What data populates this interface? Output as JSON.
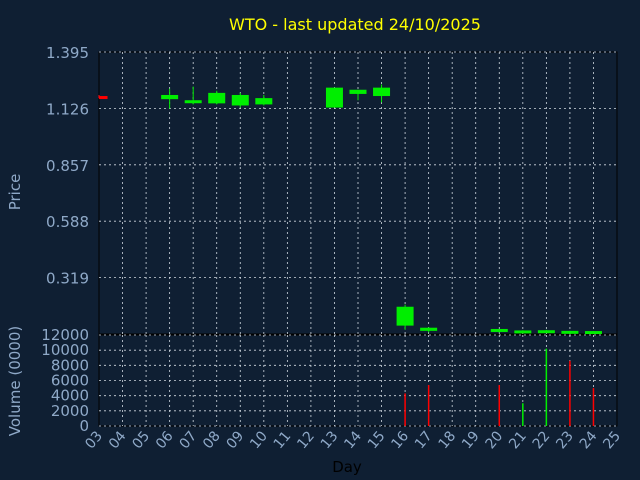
{
  "chart_data": [
    {
      "type": "candlestick",
      "title": "WTO - last updated 24/10/2025",
      "ylabel": "Price",
      "ylim": [
        0.05,
        1.395
      ],
      "yticks": [
        1.395,
        1.126,
        0.857,
        0.588,
        0.319
      ],
      "x": [
        3,
        6,
        7,
        8,
        9,
        10,
        13,
        14,
        15,
        16,
        17,
        20,
        21,
        22,
        23,
        24
      ],
      "open": [
        1.185,
        1.17,
        1.155,
        1.15,
        1.14,
        1.145,
        1.13,
        1.195,
        1.185,
        0.09,
        0.065,
        0.064,
        0.062,
        0.063,
        0.061,
        0.061
      ],
      "high": [
        1.19,
        1.22,
        1.23,
        1.21,
        1.2,
        1.19,
        1.225,
        1.215,
        1.24,
        0.19,
        0.082,
        0.074,
        0.068,
        0.07,
        0.065,
        0.064
      ],
      "low": [
        1.175,
        1.125,
        1.145,
        1.145,
        1.13,
        1.14,
        1.13,
        1.165,
        1.155,
        0.07,
        0.058,
        0.057,
        0.059,
        0.059,
        0.056,
        0.058
      ],
      "close": [
        1.175,
        1.19,
        1.165,
        1.2,
        1.19,
        1.175,
        1.225,
        1.215,
        1.225,
        0.18,
        0.08,
        0.074,
        0.067,
        0.068,
        0.065,
        0.064
      ]
    },
    {
      "type": "bar",
      "xlabel": "Day",
      "ylabel": "Volume (0000)",
      "ylim": [
        0,
        12000
      ],
      "yticks": [
        0,
        2000,
        4000,
        6000,
        8000,
        10000,
        12000
      ],
      "xticks": [
        "03",
        "04",
        "05",
        "06",
        "07",
        "08",
        "09",
        "10",
        "11",
        "12",
        "13",
        "14",
        "15",
        "16",
        "17",
        "18",
        "19",
        "20",
        "21",
        "22",
        "23",
        "24",
        "25"
      ],
      "x": [
        16,
        17,
        20,
        21,
        22,
        23,
        24
      ],
      "values": [
        4300,
        5400,
        5400,
        3000,
        10200,
        8600,
        5000
      ],
      "direction": [
        "down",
        "down",
        "down",
        "up",
        "up",
        "down",
        "down"
      ]
    }
  ],
  "colors": {
    "background": "#0f1f33",
    "title": "#ffff00",
    "axis_text": "#8fa9c8",
    "up": "#00ee00",
    "down": "#ff0000",
    "grid": "#d0d8e0"
  }
}
